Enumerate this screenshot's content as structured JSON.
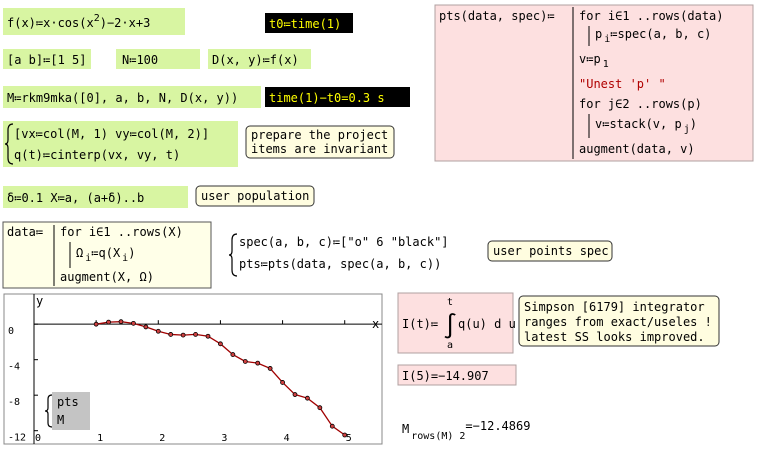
{
  "definitions": {
    "f": [
      "f(x)≔x·cos(x",
      "2",
      ")−2·x+3"
    ],
    "t0": "t0≔time(1)",
    "ab": "[a b]≔[1 5]",
    "N": "N≔100",
    "D": "D(x, y)≔f(x)",
    "M": "M≔rkm9mka([0], a, b, N, D(x, y))",
    "timing": "time(1)−t0=0.3 s",
    "vxvy": "[vx≔col(M, 1) vy≔col(M, 2)]",
    "q": "q(t)≔cinterp(vx, vy, t)",
    "X": "δ≔0.1 X≔a, (a+δ)..b",
    "spec": "spec(a, b, c)≔[\"o\" 6 \"black\"]",
    "pts": "pts≔pts(data, spec(a, b, c))"
  },
  "notes": {
    "invariant": [
      "prepare the project",
      "items are invariant"
    ],
    "population": "user population",
    "points_spec": "user points spec",
    "simpson": [
      "Simpson [6179] integrator",
      "ranges from exact/useles !",
      "latest SS looks improved."
    ]
  },
  "data_program": {
    "head": "data≔",
    "lines": [
      "for i∈1 ..rows(X)",
      [
        "Ω",
        "i",
        "≔q(X",
        "i",
        ")"
      ],
      "augment(X, Ω)"
    ]
  },
  "pts_program": {
    "head": "pts(data, spec)≔",
    "lines": [
      "for i∈1 ..rows(data)",
      [
        "p",
        "i",
        "≔spec(a, b, c)"
      ],
      [
        "v≔p",
        "1"
      ],
      "\"Unest 'p' \"",
      "for j∈2 ..rows(p)",
      [
        "v≔stack(v, p",
        "j",
        ")"
      ],
      "augment(data, v)"
    ]
  },
  "integral": {
    "lhs": "I(t)≔",
    "sign": "∫",
    "upper": "t",
    "lower": "a",
    "body": "q(u) d u"
  },
  "I5": "I(5)=−14.907",
  "last": [
    "M",
    "rows(M) 2",
    "=−12.4869"
  ],
  "chart_data": {
    "type": "line",
    "x_label": "x",
    "y_label": "y",
    "x": [
      1,
      1.2,
      1.4,
      1.6,
      1.8,
      2,
      2.2,
      2.4,
      2.6,
      2.8,
      3,
      3.2,
      3.4,
      3.6,
      3.8,
      4,
      4.2,
      4.4,
      4.6,
      4.8,
      5
    ],
    "series": [
      {
        "name": "pts",
        "color": "#000000",
        "mode": "markers",
        "values": [
          0,
          0.235,
          0.282,
          0.094,
          -0.31,
          -0.799,
          -1.157,
          -1.231,
          -1.151,
          -1.361,
          -2.215,
          -3.425,
          -4.203,
          -4.389,
          -4.984,
          -6.565,
          -7.928,
          -8.337,
          -9.411,
          -11.495,
          -12.487
        ]
      },
      {
        "name": "M",
        "color": "#a00000",
        "mode": "line",
        "values": [
          0,
          0.235,
          0.282,
          0.094,
          -0.31,
          -0.799,
          -1.157,
          -1.231,
          -1.151,
          -1.361,
          -2.215,
          -3.425,
          -4.203,
          -4.389,
          -4.984,
          -6.565,
          -7.928,
          -8.337,
          -9.411,
          -11.495,
          -12.487
        ]
      }
    ],
    "xlim": [
      0,
      5.6
    ],
    "ylim": [
      -13.5,
      3.4
    ],
    "xticks": [
      0,
      1,
      2,
      3,
      4,
      5
    ],
    "yticks": [
      0,
      -4,
      -8,
      -12
    ]
  }
}
